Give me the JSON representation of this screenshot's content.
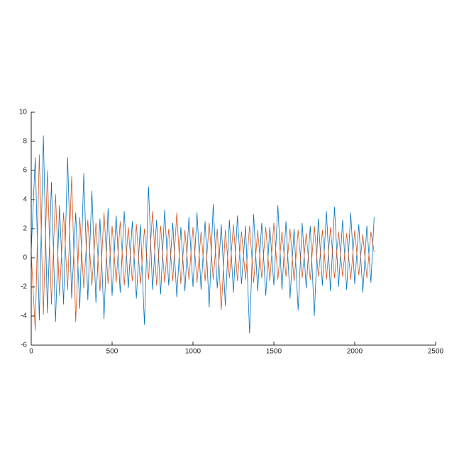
{
  "chart_data": {
    "type": "line",
    "x": [
      0,
      25,
      50,
      75,
      100,
      125,
      150,
      175,
      200,
      225,
      250,
      275,
      300,
      325,
      350,
      375,
      400,
      425,
      450,
      475,
      500,
      525,
      550,
      575,
      600,
      625,
      650,
      675,
      700,
      725,
      750,
      775,
      800,
      825,
      850,
      875,
      900,
      925,
      950,
      975,
      1000,
      1025,
      1050,
      1075,
      1100,
      1125,
      1150,
      1175,
      1200,
      1225,
      1250,
      1275,
      1300,
      1325,
      1350,
      1375,
      1400,
      1425,
      1450,
      1475,
      1500,
      1525,
      1550,
      1575,
      1600,
      1625,
      1650,
      1675,
      1700,
      1725,
      1750,
      1775,
      1800,
      1825,
      1850,
      1875,
      1900,
      1925,
      1950,
      1975,
      2000,
      2025,
      2050,
      2075,
      2100,
      2120
    ],
    "series": [
      {
        "color": "#0072BD",
        "values": [
          0.5,
          6.9,
          -4.3,
          8.4,
          -3.8,
          5.2,
          -4.4,
          3.6,
          -3.2,
          6.9,
          -2.8,
          3.1,
          -3.5,
          5.8,
          -2.9,
          4.6,
          -3.1,
          2.7,
          -4.2,
          3.4,
          -2.6,
          2.9,
          -2.4,
          3.2,
          -2.1,
          2.5,
          -2.8,
          2.3,
          -4.6,
          4.9,
          -2.2,
          2.6,
          -2.5,
          3.3,
          -1.9,
          2.4,
          -2.7,
          2.1,
          -2.3,
          2.8,
          -2.0,
          3.1,
          -2.2,
          2.5,
          -3.4,
          3.7,
          -2.1,
          2.3,
          -3.3,
          2.6,
          -2.4,
          2.9,
          -1.8,
          2.2,
          -5.2,
          3.0,
          -2.3,
          2.4,
          -2.6,
          2.1,
          -1.9,
          3.6,
          -2.2,
          2.5,
          -2.8,
          2.0,
          -3.6,
          2.4,
          -2.1,
          2.2,
          -4.0,
          2.7,
          -1.9,
          3.2,
          -2.3,
          3.5,
          -2.0,
          2.6,
          -2.2,
          3.1,
          -1.8,
          2.3,
          -2.4,
          2.2,
          -1.7,
          2.8
        ]
      },
      {
        "color": "#D95319",
        "values": [
          0.3,
          -5.0,
          7.1,
          -3.9,
          6.0,
          -3.2,
          4.4,
          -2.6,
          3.1,
          -2.2,
          5.6,
          -4.4,
          2.8,
          -2.1,
          2.6,
          -1.9,
          2.4,
          -2.3,
          3.1,
          -1.8,
          2.2,
          -1.7,
          2.5,
          -1.9,
          2.1,
          -1.6,
          2.3,
          -1.8,
          2.0,
          -1.5,
          3.2,
          -1.9,
          2.2,
          -1.7,
          2.0,
          -1.6,
          3.1,
          -1.8,
          1.9,
          -1.5,
          2.1,
          -1.7,
          1.8,
          -1.6,
          2.4,
          -1.5,
          2.0,
          -3.6,
          1.9,
          -1.4,
          2.3,
          -1.6,
          1.8,
          -1.5,
          2.2,
          -1.7,
          1.9,
          -1.4,
          2.1,
          -1.6,
          2.4,
          -1.5,
          1.8,
          -1.3,
          2.0,
          -1.6,
          1.9,
          -1.4,
          1.7,
          -1.5,
          2.2,
          -1.3,
          1.9,
          -1.5,
          2.1,
          -1.4,
          1.8,
          -1.3,
          1.7,
          -1.5,
          1.9,
          -1.2,
          1.6,
          -1.4,
          1.8,
          0.4
        ]
      }
    ],
    "xlim": [
      0,
      2500
    ],
    "xticks": [
      0,
      500,
      1000,
      1500,
      2000,
      2500
    ],
    "ylim": [
      -6,
      10
    ],
    "yticks": [
      -6,
      -4,
      -2,
      0,
      2,
      4,
      6,
      8,
      10
    ]
  }
}
